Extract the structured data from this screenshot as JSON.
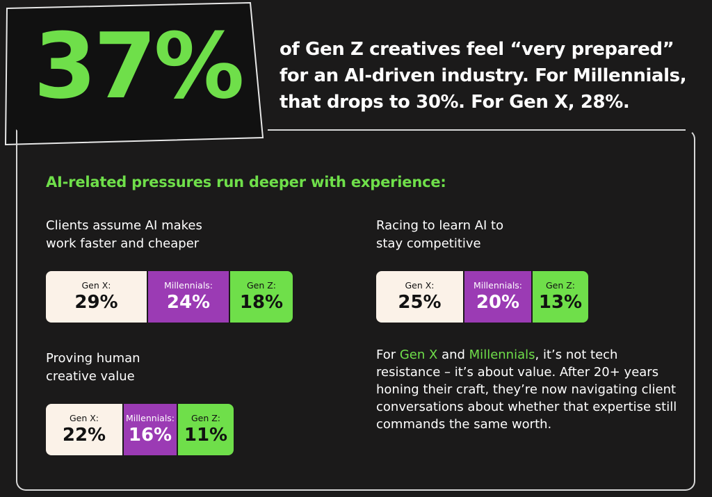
{
  "hero": {
    "stat": "37%",
    "text": "of Gen Z creatives feel “very prepared” for an AI-driven industry. For Millennials, that drops to 30%. For Gen X, 28%."
  },
  "subhead": "AI-related pressures run deeper with experience:",
  "colors": {
    "genx": "#fbf2e8",
    "millennials": "#9b3bb4",
    "genz": "#6fdf4a",
    "background": "#1b1a1a"
  },
  "chart_data": {
    "type": "bar",
    "orientation": "horizontal-stacked",
    "series_labels": [
      "Gen X:",
      "Millennials:",
      "Gen Z:"
    ],
    "groups": [
      {
        "title": "Clients assume AI makes\nwork faster and cheaper",
        "values": [
          29,
          24,
          18
        ],
        "display": [
          "29%",
          "24%",
          "18%"
        ]
      },
      {
        "title": "Racing to learn AI to\nstay competitive",
        "values": [
          25,
          20,
          13
        ],
        "display": [
          "25%",
          "20%",
          "13%"
        ]
      },
      {
        "title": "Proving human\ncreative value",
        "values": [
          22,
          16,
          11
        ],
        "display": [
          "22%",
          "16%",
          "11%"
        ]
      }
    ]
  },
  "note": {
    "part1": "For ",
    "hl1": "Gen X",
    "part2": " and ",
    "hl2": "Millennials",
    "part3": ", it’s not tech resistance – it’s about value. After 20+ years honing their craft, they’re now navigating client conversations about whether that expertise still commands the same worth."
  }
}
